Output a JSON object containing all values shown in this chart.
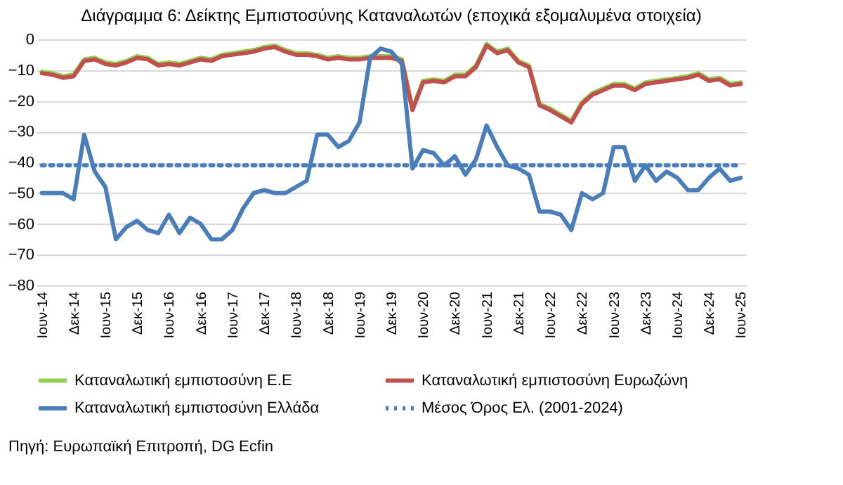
{
  "chart_data": {
    "type": "line",
    "title": "Διάγραμμα 6: Δείκτης Εμπιστοσύνης Καταναλωτών (εποχικά εξομαλυμένα στοιχεία)",
    "categories": [
      "Ιουν-14",
      null,
      null,
      "Δεκ-14",
      null,
      null,
      "Ιουν-15",
      null,
      null,
      "Δεκ-15",
      null,
      null,
      "Ιουν-16",
      null,
      null,
      "Δεκ-16",
      null,
      null,
      "Ιουν-17",
      null,
      null,
      "Δεκ-17",
      null,
      null,
      "Ιουν-18",
      null,
      null,
      "Δεκ-18",
      null,
      null,
      "Ιουν-19",
      null,
      null,
      "Δεκ-19",
      null,
      null,
      "Ιουν-20",
      null,
      null,
      "Δεκ-20",
      null,
      null,
      "Ιουν-21",
      null,
      null,
      "Δεκ-21",
      null,
      null,
      "Ιουν-22",
      null,
      null,
      "Δεκ-22",
      null,
      null,
      "Ιουν-23",
      null,
      null,
      "Δεκ-23",
      null,
      null,
      "Ιουν-24",
      null,
      null,
      "Δεκ-24",
      null,
      null,
      "Ιουν-25"
    ],
    "series": [
      {
        "name": "Καταναλωτική εμπιστοσύνη Ε.Ε",
        "color": "#92d050",
        "line_style": "solid",
        "values": [
          -10.5,
          -11,
          -12,
          -11.5,
          -6.5,
          -6,
          -7.5,
          -8,
          -7,
          -5.5,
          -6,
          -8,
          -7.5,
          -8,
          -7,
          -6,
          -6.5,
          -5,
          -4.5,
          -4,
          -3.5,
          -2.5,
          -2,
          -3.5,
          -4.5,
          -4.5,
          -5,
          -6,
          -5.5,
          -6,
          -6,
          -5.5,
          -5.5,
          -5.5,
          -6.5,
          -22.5,
          -13.5,
          -13,
          -13.5,
          -11.5,
          -11.5,
          -8.5,
          -1.5,
          -4,
          -3,
          -7,
          -8.5,
          -21,
          -22.5,
          -24.5,
          -26.5,
          -20.5,
          -17.5,
          -16,
          -14.5,
          -14.5,
          -16,
          -14,
          -13.5,
          -13,
          -12.5,
          -12,
          -11,
          -13,
          -12.5,
          -14.5,
          -14
        ]
      },
      {
        "name": "Καταναλωτική εμπιστοσύνη Ευρωζώνη",
        "color": "#c0504d",
        "line_style": "solid",
        "values": [
          -11,
          -11.5,
          -12.5,
          -12,
          -7,
          -6.5,
          -8,
          -8.5,
          -7.5,
          -6,
          -6.5,
          -8.5,
          -8,
          -8.5,
          -7.5,
          -6.5,
          -7,
          -5.5,
          -5,
          -4.5,
          -4,
          -3,
          -2.5,
          -4,
          -5,
          -5,
          -5.5,
          -6.5,
          -6,
          -6.5,
          -6.5,
          -6,
          -6,
          -6,
          -7,
          -23,
          -14,
          -13.5,
          -14,
          -12,
          -12,
          -9,
          -2,
          -4.5,
          -3.5,
          -7.5,
          -9,
          -21.5,
          -23,
          -25,
          -27,
          -21,
          -18,
          -16.5,
          -15,
          -15,
          -16.5,
          -14.5,
          -14,
          -13.5,
          -13,
          -12.5,
          -11.5,
          -13.5,
          -13,
          -15,
          -14.5
        ]
      },
      {
        "name": "Καταναλωτική εμπιστοσύνη Ελλάδα",
        "color": "#4a7ebb",
        "line_style": "solid",
        "values": [
          -50,
          -50,
          -50,
          -52,
          -31,
          -43,
          -48,
          -65,
          -61,
          -59,
          -62,
          -63,
          -57,
          -63,
          -58,
          -60,
          -65,
          -65,
          -62,
          -55,
          -50,
          -49,
          -50,
          -50,
          -48,
          -46,
          -31,
          -31,
          -35,
          -33,
          -27,
          -6,
          -3,
          -4,
          -8,
          -42,
          -36,
          -37,
          -41,
          -38,
          -44,
          -39,
          -28,
          -35,
          -41,
          -42,
          -44,
          -56,
          -56,
          -57,
          -62,
          -50,
          -52,
          -50,
          -35,
          -35,
          -46,
          -41,
          -46,
          -43,
          -45,
          -49,
          -49,
          -45,
          -42,
          -46,
          -45
        ]
      },
      {
        "name": "Μέσος Όρος Ελ. (2001-2024)",
        "color": "#4a7ebb",
        "line_style": "dotted",
        "values": [
          -41,
          -41,
          -41,
          -41,
          -41,
          -41,
          -41,
          -41,
          -41,
          -41,
          -41,
          -41,
          -41,
          -41,
          -41,
          -41,
          -41,
          -41,
          -41,
          -41,
          -41,
          -41,
          -41,
          -41,
          -41,
          -41,
          -41,
          -41,
          -41,
          -41,
          -41,
          -41,
          -41,
          -41,
          -41,
          -41,
          -41,
          -41,
          -41,
          -41,
          -41,
          -41,
          -41,
          -41,
          -41,
          -41,
          -41,
          -41,
          -41,
          -41,
          -41,
          -41,
          -41,
          -41,
          -41,
          -41,
          -41,
          -41,
          -41,
          -41,
          -41,
          -41,
          -41,
          -41,
          -41,
          -41,
          -41
        ]
      }
    ],
    "ylim": [
      -80,
      0
    ],
    "yticks": [
      -80,
      -70,
      -60,
      -50,
      -40,
      -30,
      -20,
      -10,
      0
    ],
    "grid": "y",
    "legend": "bottom",
    "annotations": [
      "Πηγή: Ευρωπαϊκή Επιτροπή, DG Ecfin"
    ]
  }
}
